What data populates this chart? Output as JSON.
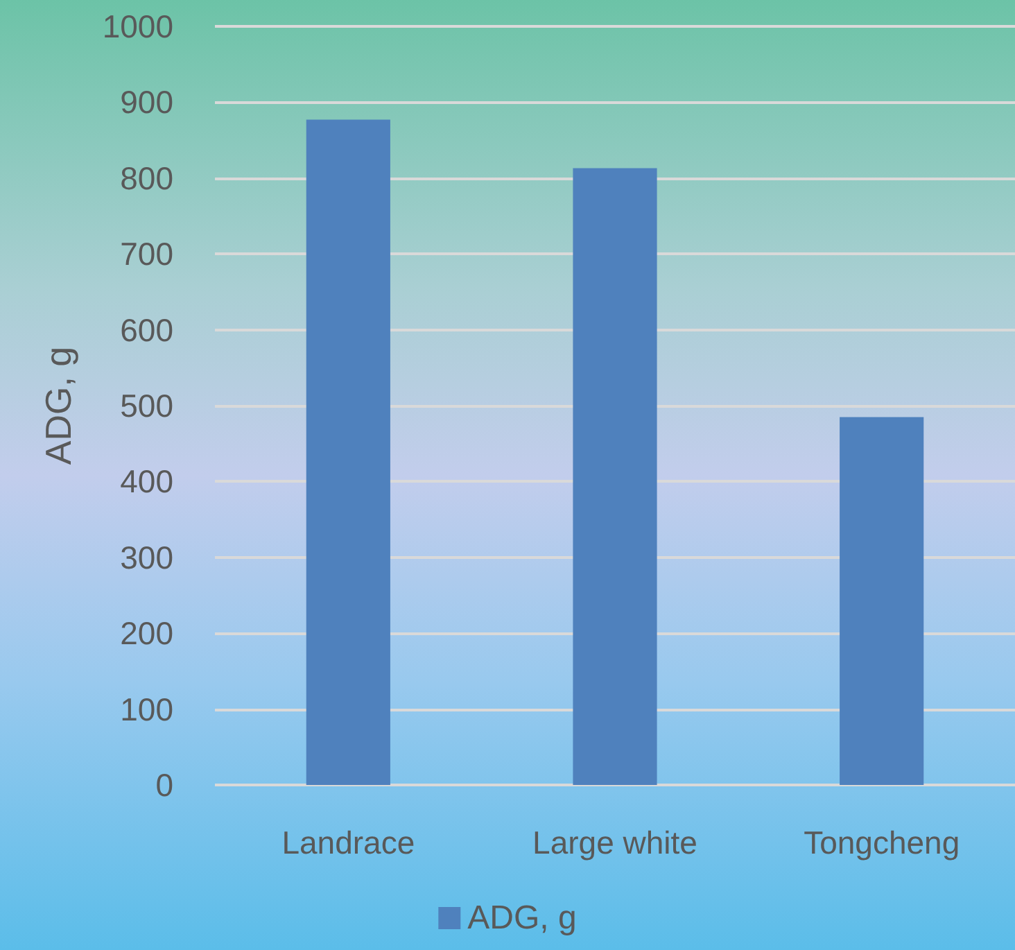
{
  "chart_data": {
    "type": "bar",
    "ylabel": "ADG, g",
    "categories": [
      "Landrace",
      "Large white",
      "Tongcheng"
    ],
    "series": [
      {
        "name": "ADG, g",
        "color": "#4f81bd",
        "values": [
          877,
          813,
          485
        ]
      }
    ],
    "ylim": [
      0,
      1000
    ],
    "yticks": [
      0,
      100,
      200,
      300,
      400,
      500,
      600,
      700,
      800,
      900,
      1000
    ],
    "grid": "y",
    "legend": "bottom"
  }
}
